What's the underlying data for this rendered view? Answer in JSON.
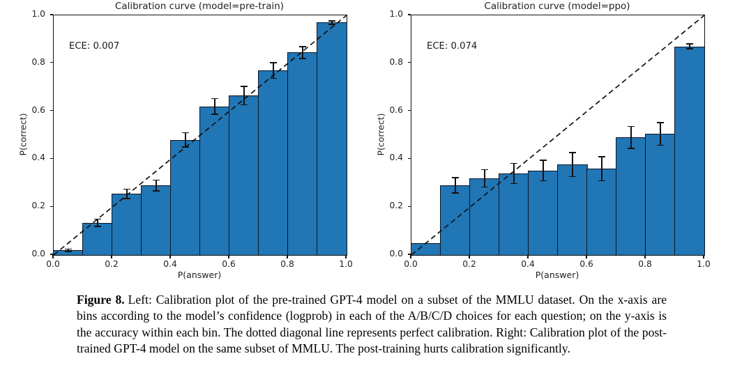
{
  "colors": {
    "bar_fill": "#2176b5",
    "bar_edge": "#0d1524",
    "diagonal_line": "#111111",
    "background": "#ffffff"
  },
  "chart_data": [
    {
      "type": "bar",
      "title": "Calibration curve (model=pre-train)",
      "annotation": "ECE: 0.007",
      "xlabel": "P(answer)",
      "ylabel": "P(correct)",
      "xlim": [
        0.0,
        1.0
      ],
      "ylim": [
        0.0,
        1.0
      ],
      "grid": false,
      "bin_width": 0.1,
      "bin_centers": [
        0.05,
        0.15,
        0.25,
        0.35,
        0.45,
        0.55,
        0.65,
        0.75,
        0.85,
        0.95
      ],
      "values": [
        0.02,
        0.135,
        0.255,
        0.29,
        0.48,
        0.62,
        0.665,
        0.77,
        0.845,
        0.97
      ],
      "errors": [
        0.005,
        0.015,
        0.02,
        0.023,
        0.03,
        0.033,
        0.038,
        0.033,
        0.025,
        0.007
      ],
      "x_tick_labels": [
        "0.0",
        "0.2",
        "0.4",
        "0.6",
        "0.8",
        "1.0"
      ],
      "y_tick_labels": [
        "0.0",
        "0.2",
        "0.4",
        "0.6",
        "0.8",
        "1.0"
      ],
      "reference_line": "dashed diagonal y=x (perfect calibration)"
    },
    {
      "type": "bar",
      "title": "Calibration curve (model=ppo)",
      "annotation": "ECE: 0.074",
      "xlabel": "P(answer)",
      "ylabel": "P(correct)",
      "xlim": [
        0.0,
        1.0
      ],
      "ylim": [
        0.0,
        1.0
      ],
      "grid": false,
      "bin_width": 0.1,
      "bin_centers": [
        0.05,
        0.15,
        0.25,
        0.35,
        0.45,
        0.55,
        0.65,
        0.75,
        0.85,
        0.95
      ],
      "values": [
        0.05,
        0.29,
        0.32,
        0.34,
        0.352,
        0.377,
        0.36,
        0.49,
        0.505,
        0.87
      ],
      "errors": [
        0,
        0.032,
        0.036,
        0.042,
        0.043,
        0.05,
        0.05,
        0.046,
        0.047,
        0.01
      ],
      "x_tick_labels": [
        "0.0",
        "0.2",
        "0.4",
        "0.6",
        "0.8",
        "1.0"
      ],
      "y_tick_labels": [
        "0.0",
        "0.2",
        "0.4",
        "0.6",
        "0.8",
        "1.0"
      ],
      "reference_line": "dashed diagonal y=x (perfect calibration)"
    }
  ],
  "caption": {
    "label": "Figure 8.",
    "text": "Left: Calibration plot of the pre-trained GPT-4 model on a subset of the MMLU dataset. On the x-axis are bins according to the model’s confidence (logprob) in each of the A/B/C/D choices for each question; on the y-axis is the accuracy within each bin. The dotted diagonal line represents perfect calibration. Right: Calibration plot of the post-trained GPT-4 model on the same subset of MMLU. The post-training hurts calibration significantly."
  }
}
